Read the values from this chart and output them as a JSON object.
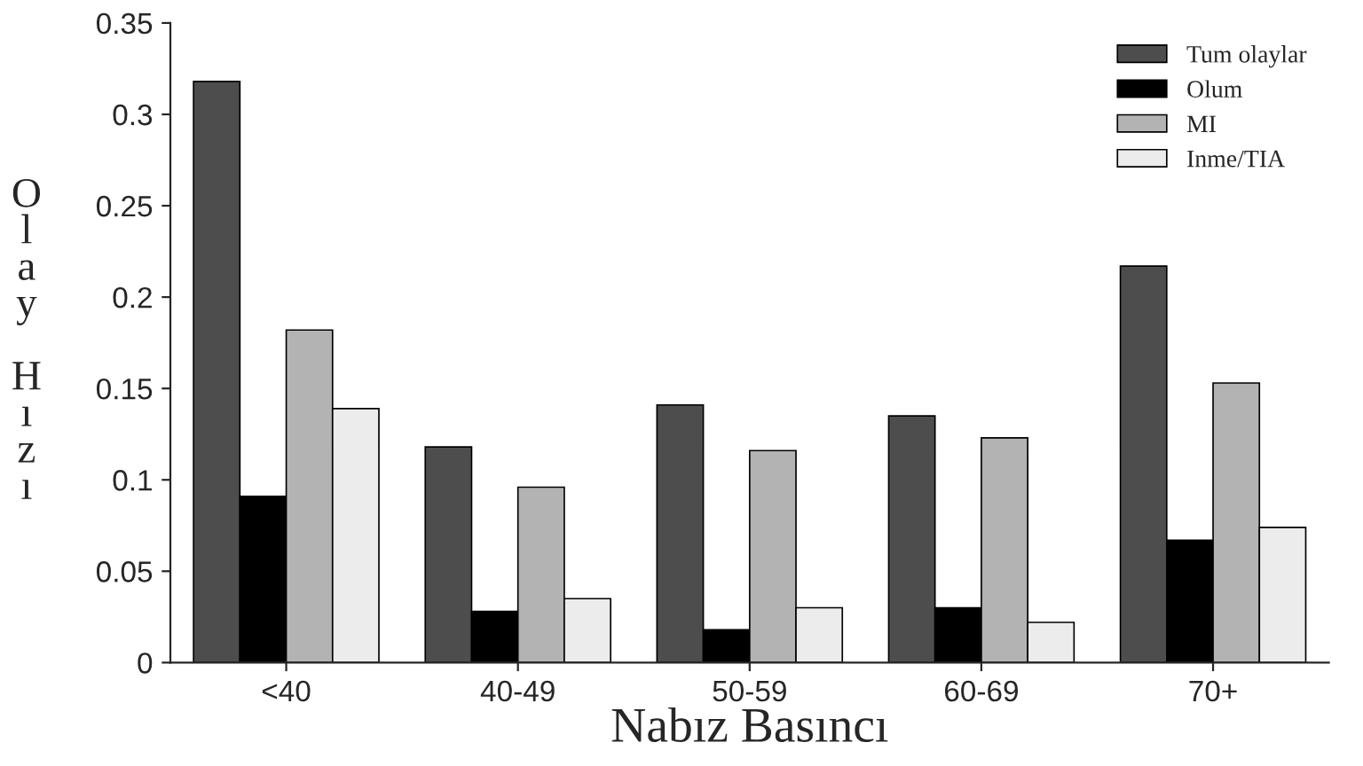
{
  "chart_data": {
    "type": "bar",
    "xlabel": "Nabız Basıncı",
    "ylabel": "Olay Hızı",
    "categories": [
      "<40",
      "40-49",
      "50-59",
      "60-69",
      "70+"
    ],
    "series": [
      {
        "name": "Tum olaylar",
        "color": "#4d4d4d",
        "values": [
          0.318,
          0.118,
          0.141,
          0.135,
          0.217
        ]
      },
      {
        "name": "Olum",
        "color": "#000000",
        "values": [
          0.091,
          0.028,
          0.018,
          0.03,
          0.067
        ]
      },
      {
        "name": "MI",
        "color": "#b3b3b3",
        "values": [
          0.182,
          0.096,
          0.116,
          0.123,
          0.153
        ]
      },
      {
        "name": "Inme/TIA",
        "color": "#ececec",
        "values": [
          0.139,
          0.035,
          0.03,
          0.022,
          0.074
        ]
      }
    ],
    "ylim": [
      0,
      0.35
    ],
    "yticks": [
      0,
      0.05,
      0.1,
      0.15,
      0.2,
      0.25,
      0.3,
      0.35
    ],
    "grid": false,
    "legend": "top right"
  }
}
